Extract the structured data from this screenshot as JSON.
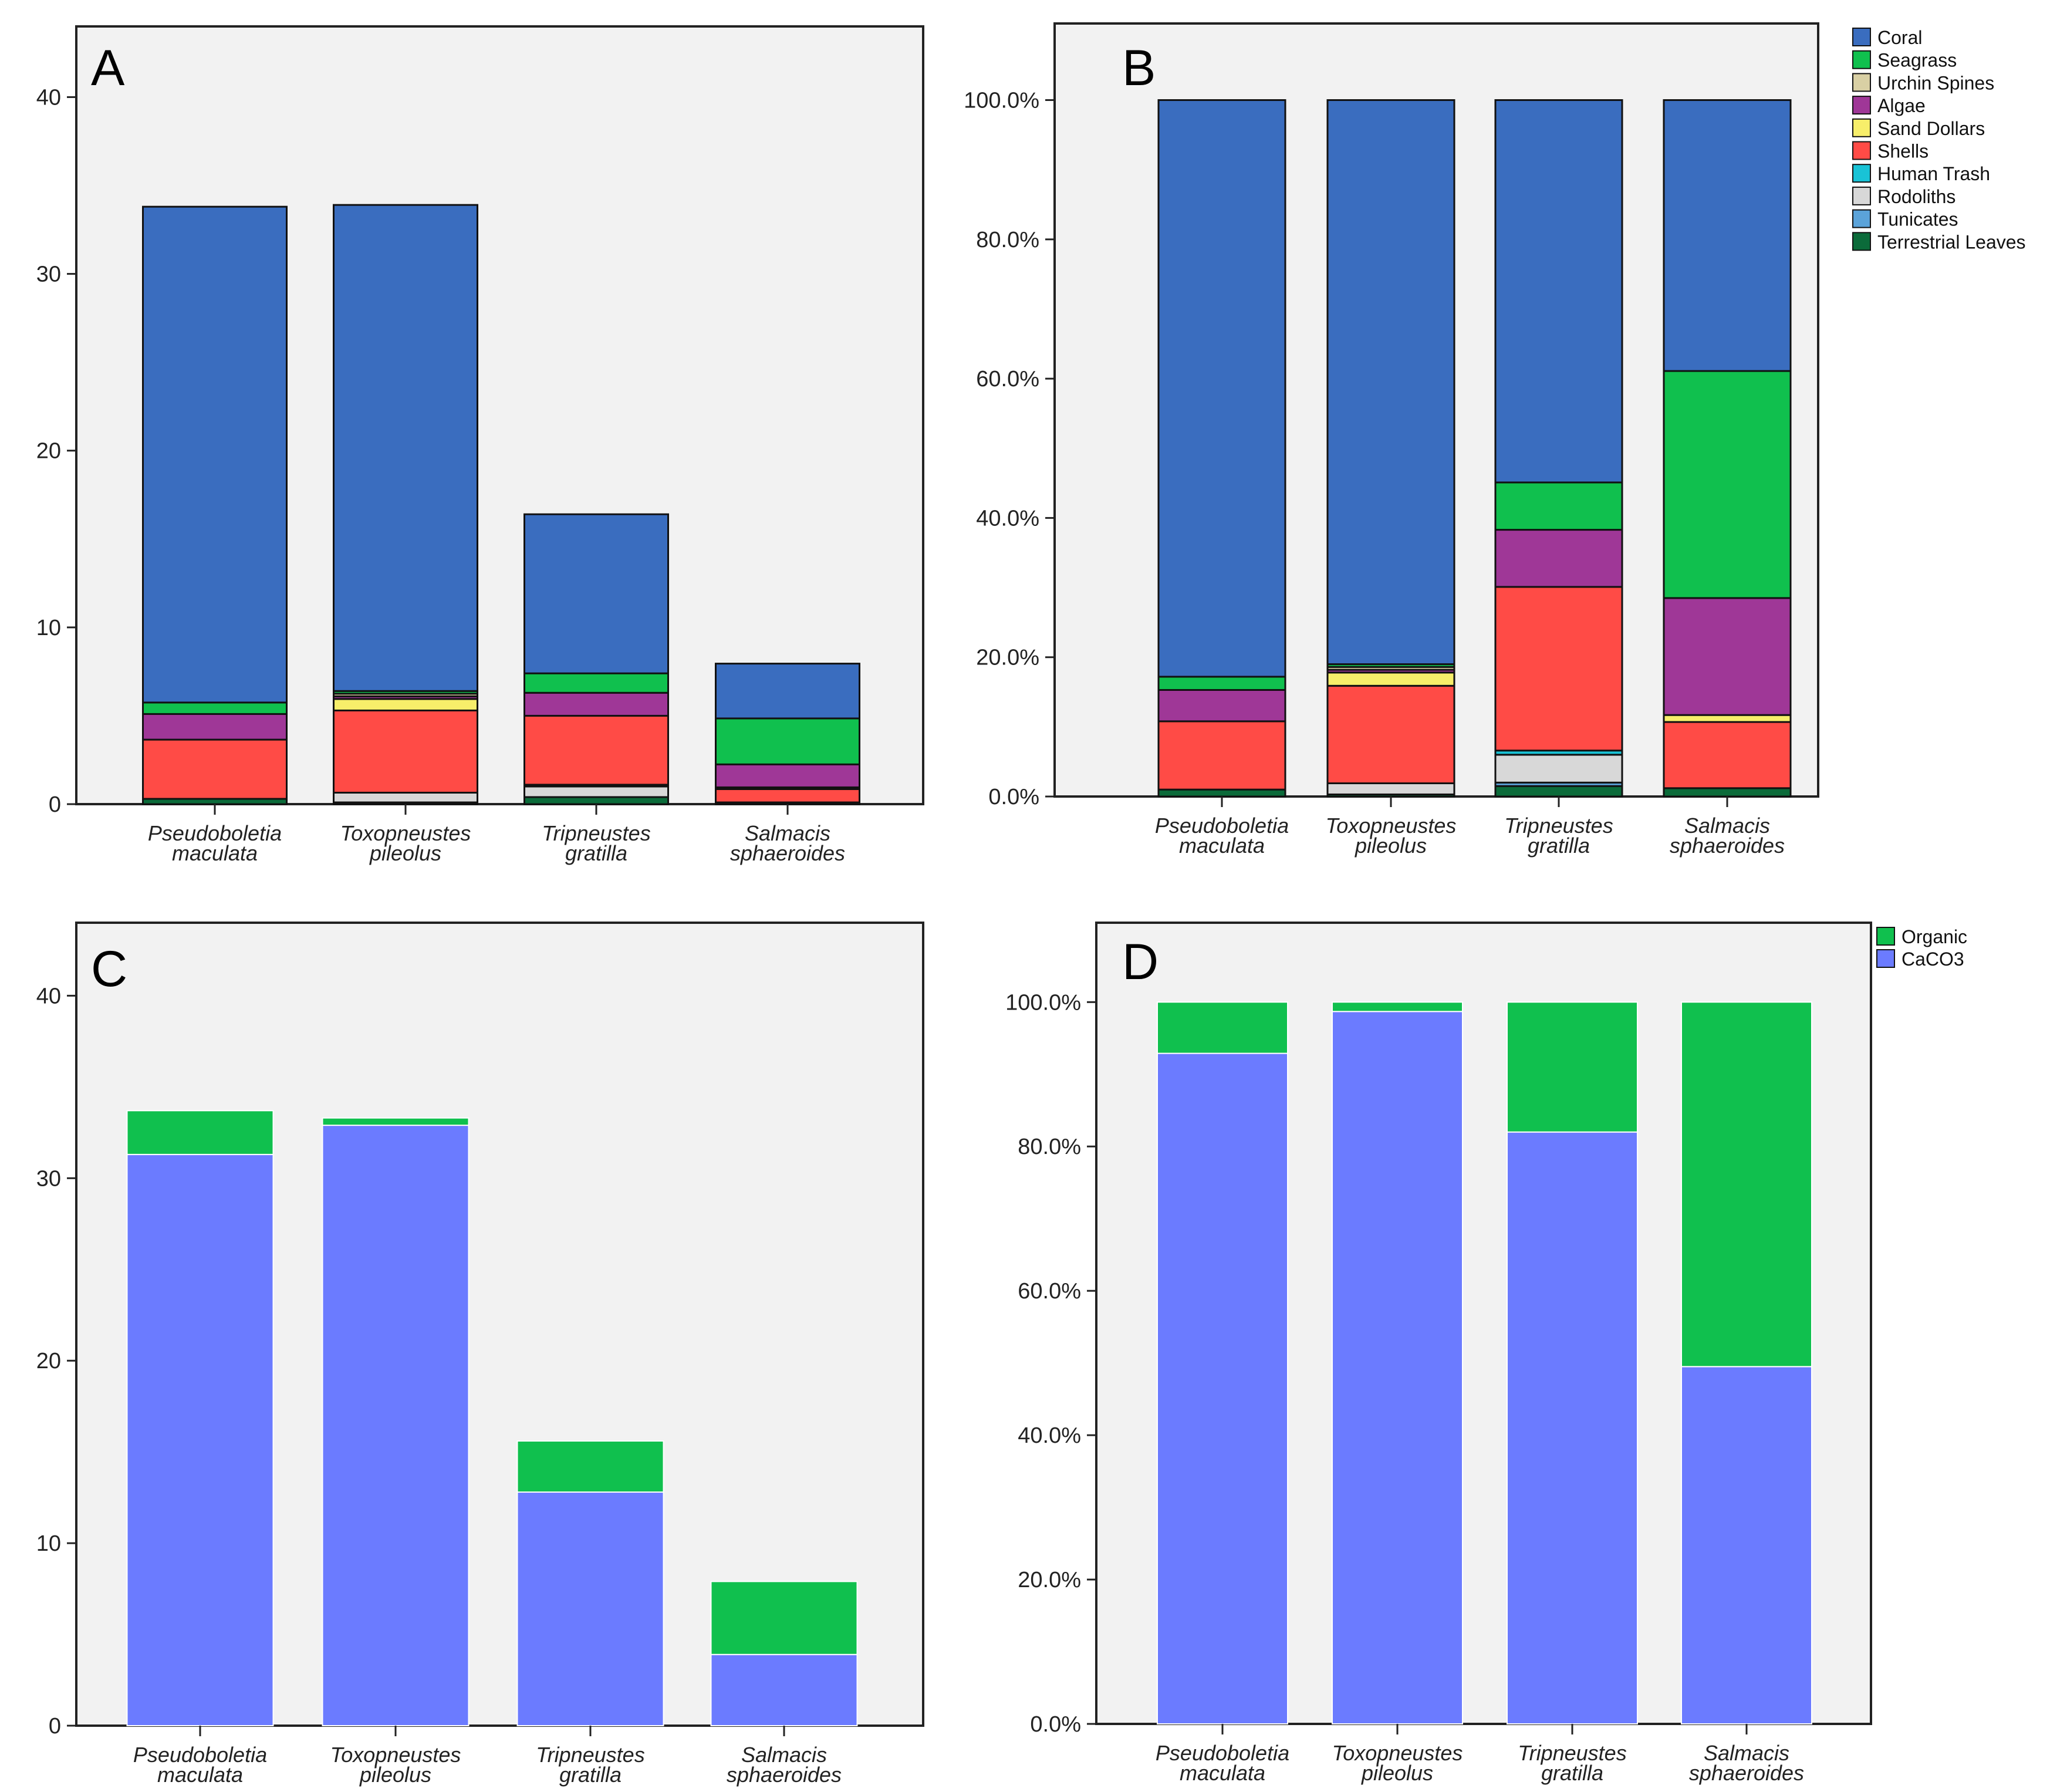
{
  "figure": {
    "panels": [
      "A",
      "B",
      "C",
      "D"
    ]
  },
  "chart_data": [
    {
      "id": "A",
      "panel_label": "A",
      "type": "bar",
      "stacked": true,
      "categories": [
        [
          "Pseudoboletia",
          "maculata"
        ],
        [
          "Toxopneustes",
          "pileolus"
        ],
        [
          "Tripneustes",
          "gratilla"
        ],
        [
          "Salmacis",
          "sphaeroides"
        ]
      ],
      "ylim": [
        0,
        44
      ],
      "yticks": [
        0,
        10,
        20,
        30,
        40
      ],
      "ytick_labels": [
        "0",
        "10",
        "20",
        "30",
        "40"
      ],
      "series": [
        {
          "name": "Terrestrial Leaves",
          "color": "#0b6b3a",
          "values": [
            0.3,
            0.1,
            0.4,
            0.1
          ]
        },
        {
          "name": "Tunicates",
          "color": "#5ba3d9",
          "values": [
            0.0,
            0.0,
            0.0,
            0.0
          ]
        },
        {
          "name": "Rodoliths",
          "color": "#d8d8d8",
          "values": [
            0.0,
            0.55,
            0.6,
            0.0
          ]
        },
        {
          "name": "Human Trash",
          "color": "#19c3d6",
          "values": [
            0.0,
            0.0,
            0.1,
            0.0
          ]
        },
        {
          "name": "Shells",
          "color": "#ff4b46",
          "values": [
            3.35,
            4.65,
            3.9,
            0.75
          ]
        },
        {
          "name": "Sand Dollars",
          "color": "#f7ee6a",
          "values": [
            0.0,
            0.65,
            0.0,
            0.1
          ]
        },
        {
          "name": "Algae",
          "color": "#9f3797",
          "values": [
            1.45,
            0.15,
            1.3,
            1.3
          ]
        },
        {
          "name": "Urchin Spines",
          "color": "#d9d0a4",
          "values": [
            0.0,
            0.15,
            0.0,
            0.0
          ]
        },
        {
          "name": "Seagrass",
          "color": "#10c04e",
          "values": [
            0.65,
            0.15,
            1.1,
            2.6
          ]
        },
        {
          "name": "Coral",
          "color": "#3a6dbf",
          "values": [
            28.05,
            27.5,
            9.0,
            3.1
          ]
        }
      ]
    },
    {
      "id": "B",
      "panel_label": "B",
      "type": "bar",
      "stacked": true,
      "categories": [
        [
          "Pseudoboletia",
          "maculata"
        ],
        [
          "Toxopneustes",
          "pileolus"
        ],
        [
          "Tripneustes",
          "gratilla"
        ],
        [
          "Salmacis",
          "sphaeroides"
        ]
      ],
      "ylim": [
        0,
        111
      ],
      "yticks": [
        0,
        20,
        40,
        60,
        80,
        100
      ],
      "ytick_labels": [
        "0.0%",
        "20.0%",
        "40.0%",
        "60.0%",
        "80.0%",
        "100.0%"
      ],
      "series": [
        {
          "name": "Terrestrial Leaves",
          "color": "#0b6b3a",
          "values": [
            1.0,
            0.3,
            1.5,
            1.2
          ]
        },
        {
          "name": "Tunicates",
          "color": "#5ba3d9",
          "values": [
            0.0,
            0.0,
            0.5,
            0.0
          ]
        },
        {
          "name": "Rodoliths",
          "color": "#d8d8d8",
          "values": [
            0.0,
            1.6,
            4.0,
            0.0
          ]
        },
        {
          "name": "Human Trash",
          "color": "#19c3d6",
          "values": [
            0.0,
            0.0,
            0.6,
            0.0
          ]
        },
        {
          "name": "Shells",
          "color": "#ff4b46",
          "values": [
            9.8,
            14.0,
            23.5,
            9.5
          ]
        },
        {
          "name": "Sand Dollars",
          "color": "#f7ee6a",
          "values": [
            0.0,
            1.9,
            0.0,
            1.0
          ]
        },
        {
          "name": "Algae",
          "color": "#9f3797",
          "values": [
            4.5,
            0.4,
            8.2,
            16.8
          ]
        },
        {
          "name": "Urchin Spines",
          "color": "#d9d0a4",
          "values": [
            0.0,
            0.4,
            0.0,
            0.0
          ]
        },
        {
          "name": "Seagrass",
          "color": "#10c04e",
          "values": [
            1.9,
            0.4,
            6.8,
            32.6
          ]
        },
        {
          "name": "Coral",
          "color": "#3a6dbf",
          "values": [
            82.8,
            81.0,
            54.9,
            38.9
          ]
        }
      ],
      "legend": {
        "entries": [
          {
            "name": "Coral",
            "color": "#3a6dbf"
          },
          {
            "name": "Seagrass",
            "color": "#10c04e"
          },
          {
            "name": "Urchin Spines",
            "color": "#d9d0a4"
          },
          {
            "name": "Algae",
            "color": "#9f3797"
          },
          {
            "name": "Sand Dollars",
            "color": "#f7ee6a"
          },
          {
            "name": "Shells",
            "color": "#ff4b46"
          },
          {
            "name": "Human Trash",
            "color": "#19c3d6"
          },
          {
            "name": "Rodoliths",
            "color": "#d8d8d8"
          },
          {
            "name": "Tunicates",
            "color": "#5ba3d9"
          },
          {
            "name": "Terrestrial Leaves",
            "color": "#0b6b3a"
          }
        ]
      }
    },
    {
      "id": "C",
      "panel_label": "C",
      "type": "bar",
      "stacked": true,
      "categories": [
        [
          "Pseudoboletia",
          "maculata"
        ],
        [
          "Toxopneustes",
          "pileolus"
        ],
        [
          "Tripneustes",
          "gratilla"
        ],
        [
          "Salmacis",
          "sphaeroides"
        ]
      ],
      "ylim": [
        0,
        44
      ],
      "yticks": [
        0,
        10,
        20,
        30,
        40
      ],
      "ytick_labels": [
        "0",
        "10",
        "20",
        "30",
        "40"
      ],
      "series": [
        {
          "name": "CaCO3",
          "color": "#6b7bff",
          "values": [
            31.3,
            32.9,
            12.8,
            3.9
          ]
        },
        {
          "name": "Organic",
          "color": "#10c04e",
          "values": [
            2.4,
            0.4,
            2.8,
            4.0
          ]
        }
      ]
    },
    {
      "id": "D",
      "panel_label": "D",
      "type": "bar",
      "stacked": true,
      "categories": [
        [
          "Pseudoboletia",
          "maculata"
        ],
        [
          "Toxopneustes",
          "pileolus"
        ],
        [
          "Tripneustes",
          "gratilla"
        ],
        [
          "Salmacis",
          "sphaeroides"
        ]
      ],
      "ylim": [
        0,
        111
      ],
      "yticks": [
        0,
        20,
        40,
        60,
        80,
        100
      ],
      "ytick_labels": [
        "0.0%",
        "20.0%",
        "40.0%",
        "60.0%",
        "80.0%",
        "100.0%"
      ],
      "series": [
        {
          "name": "CaCO3",
          "color": "#6b7bff",
          "values": [
            92.9,
            98.7,
            82.0,
            49.5
          ]
        },
        {
          "name": "Organic",
          "color": "#10c04e",
          "values": [
            7.1,
            1.3,
            18.0,
            50.5
          ]
        }
      ],
      "legend": {
        "entries": [
          {
            "name": "Organic",
            "color": "#10c04e"
          },
          {
            "name": "CaCO3",
            "color": "#6b7bff"
          }
        ]
      }
    }
  ]
}
